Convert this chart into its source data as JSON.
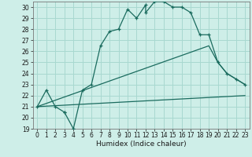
{
  "xlabel": "Humidex (Indice chaleur)",
  "bg_color": "#ceeee8",
  "grid_color": "#a8d8d0",
  "line_color": "#1a6b5e",
  "marker": "+",
  "xlim": [
    -0.5,
    23.5
  ],
  "ylim": [
    19,
    30.5
  ],
  "xticks": [
    0,
    1,
    2,
    3,
    4,
    5,
    6,
    7,
    8,
    9,
    10,
    11,
    12,
    13,
    14,
    15,
    16,
    17,
    18,
    19,
    20,
    21,
    22,
    23
  ],
  "yticks": [
    19,
    20,
    21,
    22,
    23,
    24,
    25,
    26,
    27,
    28,
    29,
    30
  ],
  "line1_x": [
    0,
    1,
    2,
    3,
    3,
    4,
    4,
    5,
    6,
    7,
    8,
    9,
    10,
    11,
    12,
    12,
    13,
    14,
    15,
    16,
    17,
    18,
    19,
    20,
    21,
    22,
    23
  ],
  "line1_y": [
    21.0,
    22.5,
    21.0,
    20.5,
    20.5,
    19.0,
    19.0,
    22.5,
    23.0,
    26.5,
    27.8,
    28.0,
    29.8,
    29.0,
    30.2,
    29.5,
    30.5,
    30.5,
    30.0,
    30.0,
    29.5,
    27.5,
    27.5,
    25.0,
    24.0,
    23.5,
    23.0
  ],
  "line2_x": [
    0,
    23
  ],
  "line2_y": [
    21.0,
    22.0
  ],
  "line3_x": [
    0,
    19,
    20,
    21,
    22,
    23
  ],
  "line3_y": [
    21.0,
    26.5,
    25.0,
    24.0,
    23.5,
    23.0
  ],
  "tick_fontsize": 5.5,
  "label_fontsize": 6.5
}
